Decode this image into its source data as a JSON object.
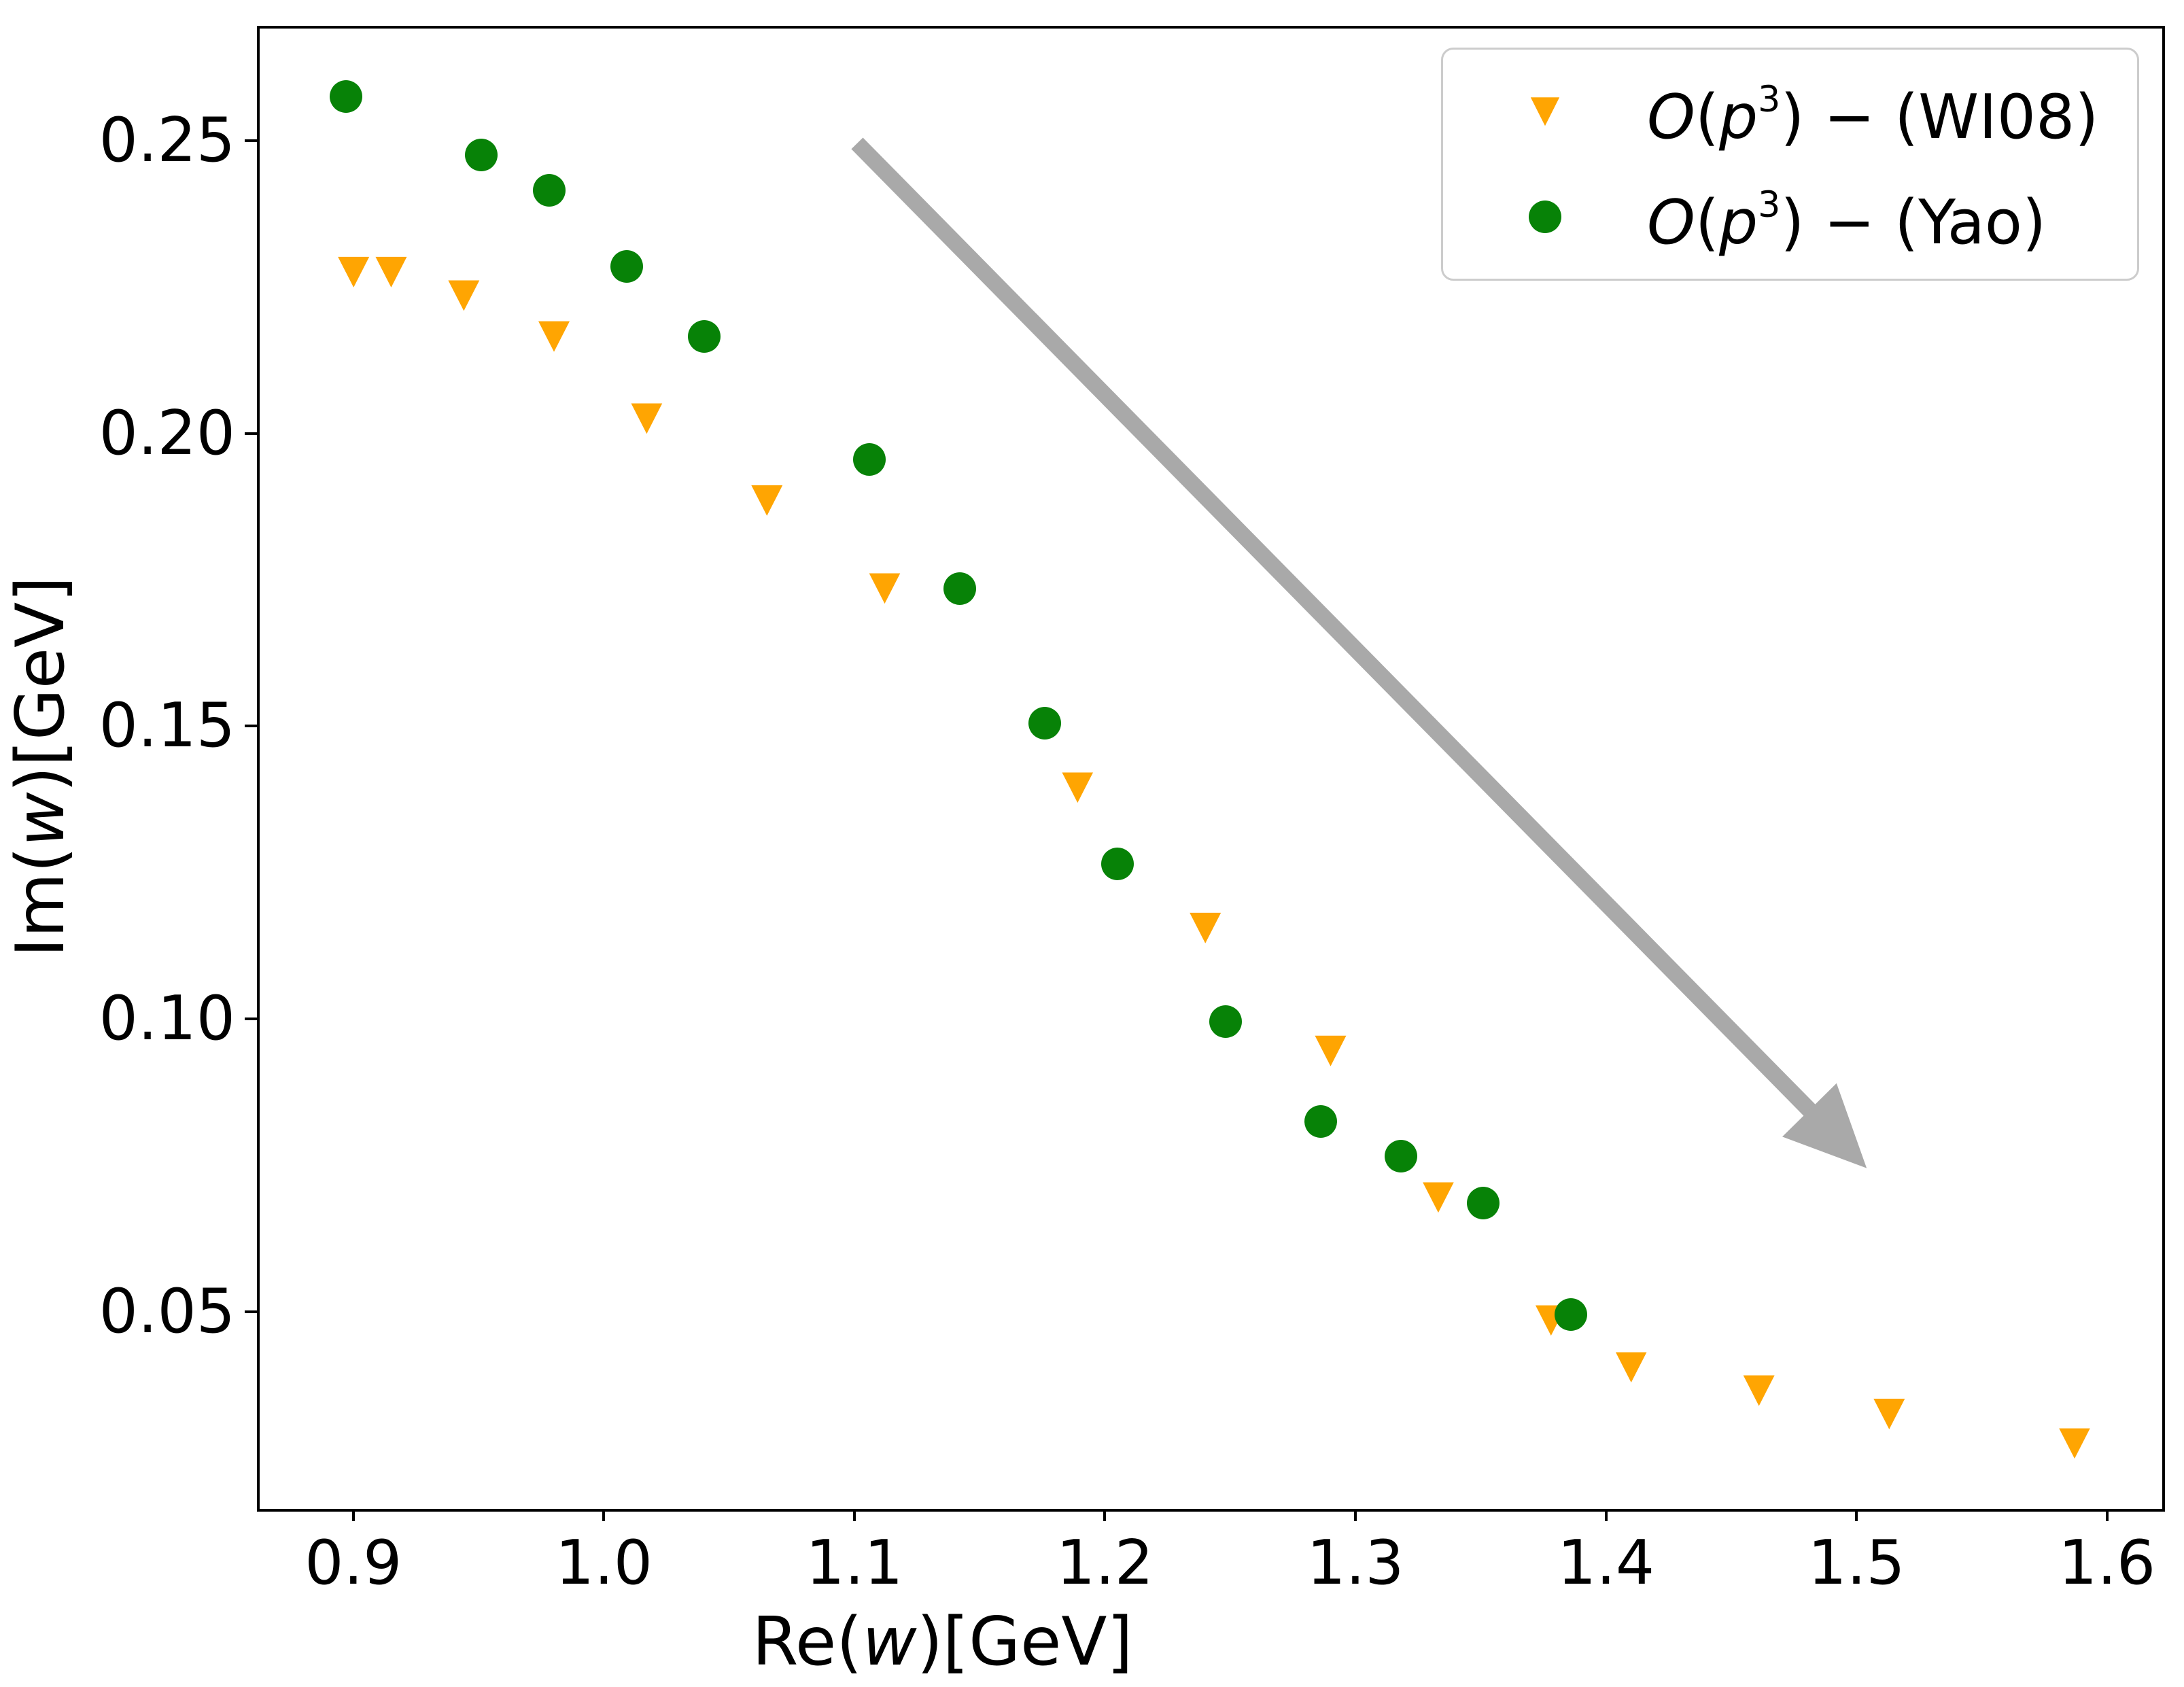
{
  "figure": {
    "background": "#ffffff"
  },
  "chart_data": {
    "type": "scatter",
    "title": "",
    "xlabel": "Re(w)[GeV]",
    "ylabel": "Im(w)[GeV]",
    "xlabel_parts": {
      "prefix": "Re(",
      "var": "w",
      "suffix": ")[GeV]"
    },
    "ylabel_parts": {
      "prefix": "Im(",
      "var": "w",
      "suffix": ")[GeV]"
    },
    "xlim": [
      0.8615,
      1.621
    ],
    "ylim": [
      0.0168,
      0.2696
    ],
    "grid": false,
    "xticks": {
      "values": [
        0.9,
        1.0,
        1.1,
        1.2,
        1.3,
        1.4,
        1.5,
        1.6
      ],
      "labels": [
        "0.9",
        "1.0",
        "1.1",
        "1.2",
        "1.3",
        "1.4",
        "1.5",
        "1.6"
      ]
    },
    "yticks": {
      "values": [
        0.05,
        0.1,
        0.15,
        0.2,
        0.25
      ],
      "labels": [
        "0.05",
        "0.10",
        "0.15",
        "0.20",
        "0.25"
      ]
    },
    "series": [
      {
        "name": "O(p3) - (WI08)",
        "slug": "wi08",
        "marker": "triangle-down",
        "color": "#ffa502",
        "points": [
          [
            0.899,
            0.228
          ],
          [
            0.914,
            0.228
          ],
          [
            0.943,
            0.224
          ],
          [
            0.979,
            0.217
          ],
          [
            1.016,
            0.203
          ],
          [
            1.064,
            0.189
          ],
          [
            1.111,
            0.174
          ],
          [
            1.188,
            0.14
          ],
          [
            1.239,
            0.116
          ],
          [
            1.289,
            0.095
          ],
          [
            1.332,
            0.07
          ],
          [
            1.377,
            0.049
          ],
          [
            1.409,
            0.041
          ],
          [
            1.46,
            0.037
          ],
          [
            1.512,
            0.033
          ],
          [
            1.586,
            0.028
          ]
        ]
      },
      {
        "name": "O(p3) - (Yao)",
        "slug": "yao",
        "marker": "circle",
        "color": "#078207",
        "points": [
          [
            0.896,
            0.258
          ],
          [
            0.95,
            0.248
          ],
          [
            0.977,
            0.242
          ],
          [
            1.008,
            0.229
          ],
          [
            1.039,
            0.217
          ],
          [
            1.105,
            0.196
          ],
          [
            1.141,
            0.174
          ],
          [
            1.175,
            0.151
          ],
          [
            1.204,
            0.127
          ],
          [
            1.247,
            0.1
          ],
          [
            1.285,
            0.083
          ],
          [
            1.317,
            0.077
          ],
          [
            1.35,
            0.069
          ],
          [
            1.385,
            0.05
          ]
        ]
      }
    ],
    "annotations": [
      {
        "type": "arrow",
        "from": [
          1.1,
          0.25
        ],
        "to": [
          1.503,
          0.075
        ],
        "color": "#a9a9a9",
        "shaft_width": 24,
        "head_length": 120,
        "head_half_width": 56
      }
    ],
    "legend": {
      "position": "upper right",
      "items": [
        {
          "marker": "triangle-down",
          "color": "#ffa502",
          "o_var": "O",
          "open_paren": "(",
          "p_var": "p",
          "sup": "3",
          "rest": ") − (WI08)"
        },
        {
          "marker": "circle",
          "color": "#078207",
          "o_var": "O",
          "open_paren": "(",
          "p_var": "p",
          "sup": "3",
          "rest": ") − (Yao)"
        }
      ]
    }
  }
}
